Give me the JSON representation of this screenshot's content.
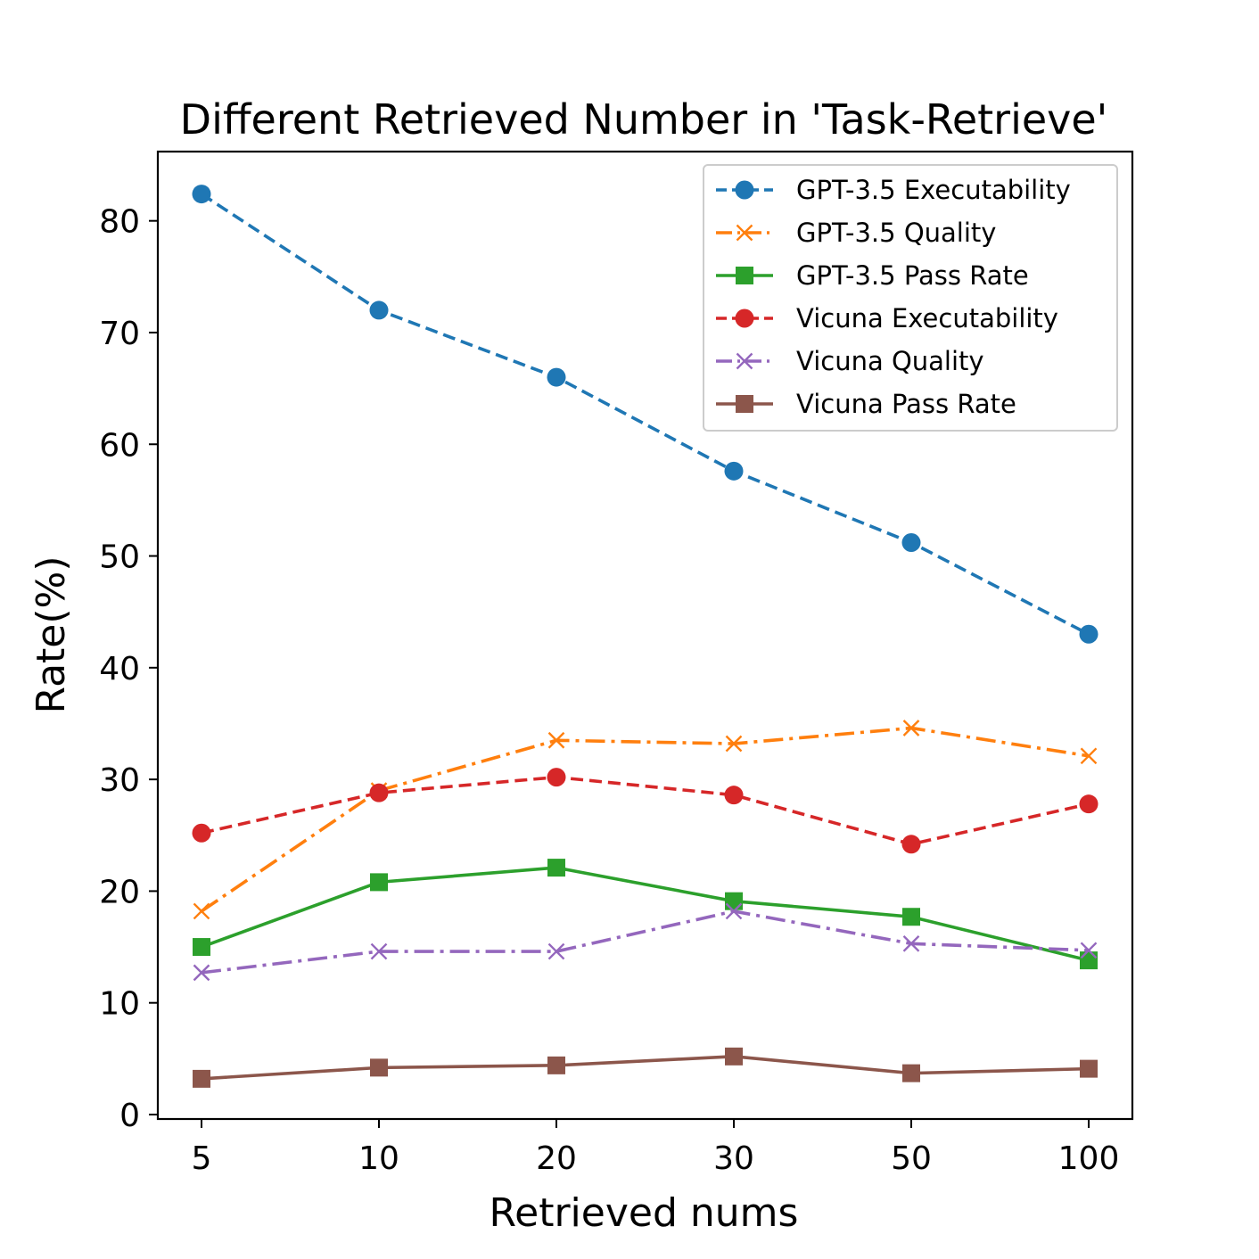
{
  "chart_data": {
    "type": "line",
    "title": "Different Retrieved Number in 'Task-Retrieve'",
    "xlabel": "Retrieved nums",
    "ylabel": "Rate(%)",
    "categories": [
      "5",
      "10",
      "20",
      "30",
      "50",
      "100"
    ],
    "ylim": [
      -0.4,
      86.2
    ],
    "yticks": [
      "0",
      "10",
      "20",
      "30",
      "40",
      "50",
      "60",
      "70",
      "80"
    ],
    "legend_position": "upper-right",
    "grid": false,
    "series": [
      {
        "name": "GPT-3.5 Executability",
        "color": "#1f77b4",
        "linestyle": "dashed",
        "marker": "circle",
        "values": [
          82.4,
          72.0,
          66.0,
          57.6,
          51.2,
          43.0
        ]
      },
      {
        "name": "GPT-3.5 Quality",
        "color": "#ff7f0e",
        "linestyle": "dashdot",
        "marker": "x",
        "values": [
          18.2,
          29.0,
          33.5,
          33.2,
          34.6,
          32.1
        ]
      },
      {
        "name": "GPT-3.5 Pass Rate",
        "color": "#2ca02c",
        "linestyle": "solid",
        "marker": "square",
        "values": [
          15.0,
          20.8,
          22.1,
          19.1,
          17.7,
          13.8
        ]
      },
      {
        "name": "Vicuna Executability",
        "color": "#d62728",
        "linestyle": "dashed",
        "marker": "circle",
        "values": [
          25.2,
          28.8,
          30.2,
          28.6,
          24.2,
          27.8
        ]
      },
      {
        "name": "Vicuna Quality",
        "color": "#9467bd",
        "linestyle": "dashdot",
        "marker": "x",
        "values": [
          12.7,
          14.6,
          14.6,
          18.2,
          15.3,
          14.7
        ]
      },
      {
        "name": "Vicuna Pass Rate",
        "color": "#8c564b",
        "linestyle": "solid",
        "marker": "square",
        "values": [
          3.2,
          4.2,
          4.4,
          5.2,
          3.7,
          4.1
        ]
      }
    ]
  }
}
